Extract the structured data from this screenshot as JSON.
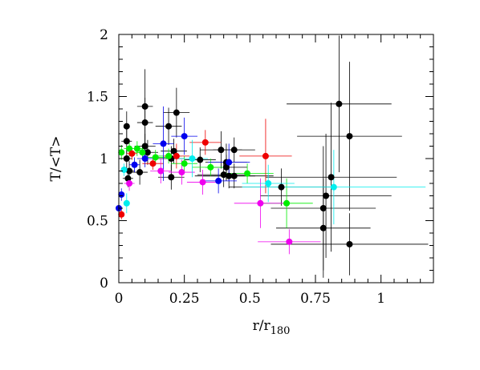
{
  "chart_data": {
    "type": "scatter",
    "title": "",
    "xlabel": "r/r",
    "xlabel_sub": "180",
    "ylabel": "T/<T>",
    "xlim": [
      0,
      1.2
    ],
    "ylim": [
      0,
      2
    ],
    "x_ticks": [
      {
        "value": 0,
        "label": "0"
      },
      {
        "value": 0.25,
        "label": "0.25"
      },
      {
        "value": 0.5,
        "label": "0.5"
      },
      {
        "value": 0.75,
        "label": "0.75"
      },
      {
        "value": 1,
        "label": "1"
      }
    ],
    "y_ticks": [
      {
        "value": 0,
        "label": "0"
      },
      {
        "value": 0.5,
        "label": "0.5"
      },
      {
        "value": 1,
        "label": "1"
      },
      {
        "value": 1.5,
        "label": "1.5"
      },
      {
        "value": 2,
        "label": "2"
      }
    ],
    "grid": false,
    "legend": "none",
    "series": [
      {
        "color": "#000000",
        "points": [
          {
            "x": 0.03,
            "y": 1.26,
            "xerr": 0.01,
            "yerr": 0.12
          },
          {
            "x": 0.03,
            "y": 1.14,
            "xerr": 0.02,
            "yerr": 0.1
          },
          {
            "x": 0.03,
            "y": 1.0,
            "xerr": 0.02,
            "yerr": 0.08
          },
          {
            "x": 0.04,
            "y": 0.9,
            "xerr": 0.02,
            "yerr": 0.08
          },
          {
            "x": 0.035,
            "y": 0.84,
            "xerr": 0.02,
            "yerr": 0.07
          },
          {
            "x": 0.1,
            "y": 1.42,
            "xerr": 0.03,
            "yerr": 0.3
          },
          {
            "x": 0.1,
            "y": 1.29,
            "xerr": 0.03,
            "yerr": 0.2
          },
          {
            "x": 0.1,
            "y": 1.1,
            "xerr": 0.04,
            "yerr": 0.1
          },
          {
            "x": 0.11,
            "y": 1.05,
            "xerr": 0.04,
            "yerr": 0.1
          },
          {
            "x": 0.08,
            "y": 0.89,
            "xerr": 0.03,
            "yerr": 0.1
          },
          {
            "x": 0.22,
            "y": 1.37,
            "xerr": 0.05,
            "yerr": 0.2
          },
          {
            "x": 0.19,
            "y": 1.26,
            "xerr": 0.05,
            "yerr": 0.15
          },
          {
            "x": 0.21,
            "y": 1.06,
            "xerr": 0.05,
            "yerr": 0.1
          },
          {
            "x": 0.2,
            "y": 1.0,
            "xerr": 0.05,
            "yerr": 0.1
          },
          {
            "x": 0.2,
            "y": 0.85,
            "xerr": 0.05,
            "yerr": 0.1
          },
          {
            "x": 0.31,
            "y": 0.99,
            "xerr": 0.06,
            "yerr": 0.1
          },
          {
            "x": 0.39,
            "y": 1.07,
            "xerr": 0.08,
            "yerr": 0.15
          },
          {
            "x": 0.41,
            "y": 0.97,
            "xerr": 0.08,
            "yerr": 0.15
          },
          {
            "x": 0.41,
            "y": 0.93,
            "xerr": 0.08,
            "yerr": 0.1
          },
          {
            "x": 0.4,
            "y": 0.87,
            "xerr": 0.1,
            "yerr": 0.1
          },
          {
            "x": 0.42,
            "y": 0.86,
            "xerr": 0.1,
            "yerr": 0.1
          },
          {
            "x": 0.44,
            "y": 0.86,
            "xerr": 0.15,
            "yerr": 0.1
          },
          {
            "x": 0.44,
            "y": 1.07,
            "xerr": 0.08,
            "yerr": 0.1
          },
          {
            "x": 0.62,
            "y": 0.77,
            "xerr": 0.2,
            "yerr": 0.15
          },
          {
            "x": 0.78,
            "y": 0.6,
            "xerr": 0.2,
            "yerr": 0.5
          },
          {
            "x": 0.78,
            "y": 0.44,
            "xerr": 0.18,
            "yerr": 0.4
          },
          {
            "x": 0.79,
            "y": 0.7,
            "xerr": 0.25,
            "yerr": 0.5
          },
          {
            "x": 0.81,
            "y": 0.85,
            "xerr": 0.25,
            "yerr": 0.6
          },
          {
            "x": 0.84,
            "y": 1.44,
            "xerr": 0.2,
            "yerr": 0.55
          },
          {
            "x": 0.88,
            "y": 1.18,
            "xerr": 0.2,
            "yerr": 0.6
          },
          {
            "x": 0.88,
            "y": 0.31,
            "xerr": 0.3,
            "yerr": 0.25
          }
        ]
      },
      {
        "color": "#00ee00",
        "points": [
          {
            "x": 0.01,
            "y": 1.05,
            "xerr": 0.01,
            "yerr": 0.06
          },
          {
            "x": 0.04,
            "y": 1.08,
            "xerr": 0.02,
            "yerr": 0.06
          },
          {
            "x": 0.07,
            "y": 1.08,
            "xerr": 0.03,
            "yerr": 0.06
          },
          {
            "x": 0.09,
            "y": 1.05,
            "xerr": 0.03,
            "yerr": 0.06
          },
          {
            "x": 0.14,
            "y": 1.01,
            "xerr": 0.04,
            "yerr": 0.06
          },
          {
            "x": 0.19,
            "y": 1.02,
            "xerr": 0.05,
            "yerr": 0.06
          },
          {
            "x": 0.25,
            "y": 0.96,
            "xerr": 0.05,
            "yerr": 0.06
          },
          {
            "x": 0.35,
            "y": 0.93,
            "xerr": 0.07,
            "yerr": 0.07
          },
          {
            "x": 0.49,
            "y": 0.88,
            "xerr": 0.1,
            "yerr": 0.08
          },
          {
            "x": 0.64,
            "y": 0.64,
            "xerr": 0.1,
            "yerr": 0.2
          }
        ]
      },
      {
        "color": "#ee0000",
        "points": [
          {
            "x": 0.01,
            "y": 0.55,
            "xerr": 0.01,
            "yerr": 0.04
          },
          {
            "x": 0.05,
            "y": 1.04,
            "xerr": 0.02,
            "yerr": 0.05
          },
          {
            "x": 0.13,
            "y": 0.96,
            "xerr": 0.04,
            "yerr": 0.05
          },
          {
            "x": 0.22,
            "y": 1.02,
            "xerr": 0.05,
            "yerr": 0.1
          },
          {
            "x": 0.33,
            "y": 1.13,
            "xerr": 0.06,
            "yerr": 0.1
          },
          {
            "x": 0.56,
            "y": 1.02,
            "xerr": 0.1,
            "yerr": 0.3
          }
        ]
      },
      {
        "color": "#0000ee",
        "points": [
          {
            "x": 0.0,
            "y": 0.6,
            "xerr": 0.01,
            "yerr": 0.04
          },
          {
            "x": 0.01,
            "y": 0.71,
            "xerr": 0.01,
            "yerr": 0.05
          },
          {
            "x": 0.06,
            "y": 0.95,
            "xerr": 0.02,
            "yerr": 0.06
          },
          {
            "x": 0.1,
            "y": 1.0,
            "xerr": 0.03,
            "yerr": 0.07
          },
          {
            "x": 0.17,
            "y": 1.12,
            "xerr": 0.04,
            "yerr": 0.3
          },
          {
            "x": 0.25,
            "y": 1.18,
            "xerr": 0.05,
            "yerr": 0.15
          },
          {
            "x": 0.38,
            "y": 0.82,
            "xerr": 0.07,
            "yerr": 0.1
          },
          {
            "x": 0.42,
            "y": 0.97,
            "xerr": 0.08,
            "yerr": 0.15
          }
        ]
      },
      {
        "color": "#ee00ee",
        "points": [
          {
            "x": 0.04,
            "y": 0.8,
            "xerr": 0.02,
            "yerr": 0.06
          },
          {
            "x": 0.16,
            "y": 0.9,
            "xerr": 0.04,
            "yerr": 0.1
          },
          {
            "x": 0.24,
            "y": 0.89,
            "xerr": 0.05,
            "yerr": 0.1
          },
          {
            "x": 0.32,
            "y": 0.81,
            "xerr": 0.06,
            "yerr": 0.1
          },
          {
            "x": 0.54,
            "y": 0.64,
            "xerr": 0.1,
            "yerr": 0.2
          },
          {
            "x": 0.65,
            "y": 0.33,
            "xerr": 0.12,
            "yerr": 0.1
          }
        ]
      },
      {
        "color": "#00eeee",
        "points": [
          {
            "x": 0.02,
            "y": 0.91,
            "xerr": 0.01,
            "yerr": 0.05
          },
          {
            "x": 0.03,
            "y": 0.64,
            "xerr": 0.01,
            "yerr": 0.08
          },
          {
            "x": 0.28,
            "y": 1.0,
            "xerr": 0.06,
            "yerr": 0.15
          },
          {
            "x": 0.57,
            "y": 0.8,
            "xerr": 0.1,
            "yerr": 0.15
          },
          {
            "x": 0.82,
            "y": 0.77,
            "xerr": 0.35,
            "yerr": 0.3
          }
        ]
      }
    ]
  }
}
